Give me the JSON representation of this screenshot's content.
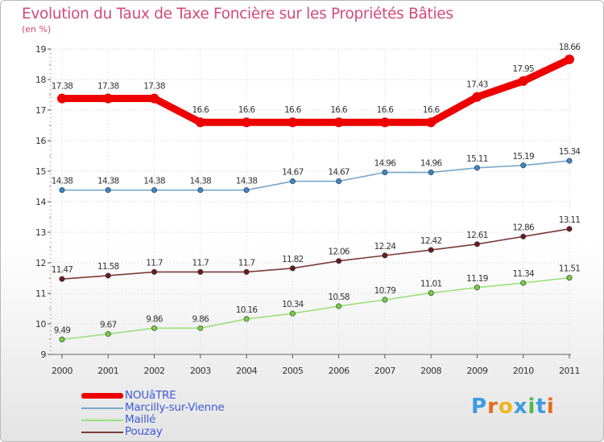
{
  "title": "Evolution du Taux de Taxe Foncière sur les Propriétés Bâties",
  "subtitle": "(en %)",
  "logo": {
    "text": "Proxiti",
    "letters": [
      "P",
      "r",
      "o",
      "x",
      "i",
      "t",
      "i"
    ],
    "colors": [
      "#3c9be0",
      "#e46b1c",
      "#f0b51c",
      "#3c9be0",
      "#4db848",
      "#3c9be0",
      "#e46b1c"
    ]
  },
  "chart_data": {
    "type": "line",
    "title": "Evolution du Taux de Taxe Foncière sur les Propriétés Bâties",
    "ylabel": "(en %)",
    "categories": [
      "2000",
      "2001",
      "2002",
      "2003",
      "2004",
      "2005",
      "2006",
      "2007",
      "2008",
      "2009",
      "2010",
      "2011"
    ],
    "ylim": [
      9,
      19
    ],
    "yticks": [
      "9",
      "10",
      "11",
      "12",
      "13",
      "14",
      "15",
      "16",
      "17",
      "18",
      "19"
    ],
    "series": [
      {
        "name": "NOUâTRE",
        "color": "#ee0000",
        "thick": true,
        "values": [
          17.38,
          17.38,
          17.38,
          16.6,
          16.6,
          16.6,
          16.6,
          16.6,
          16.6,
          17.43,
          17.95,
          18.66
        ],
        "labels": [
          "17.38",
          "17.38",
          "17.38",
          "16.6",
          "16.6",
          "16.6",
          "16.6",
          "16.6",
          "16.6",
          "17.43",
          "17.95",
          "18.66"
        ]
      },
      {
        "name": "Marcilly-sur-Vienne",
        "color": "#7aa6c8",
        "marker": "#3a86c8",
        "values": [
          14.38,
          14.38,
          14.38,
          14.38,
          14.38,
          14.67,
          14.67,
          14.96,
          14.96,
          15.11,
          15.19,
          15.34
        ],
        "labels": [
          "14.38",
          "14.38",
          "14.38",
          "14.38",
          "14.38",
          "14.67",
          "14.67",
          "14.96",
          "14.96",
          "15.11",
          "15.19",
          "15.34"
        ]
      },
      {
        "name": "Maillé",
        "color": "#9be07a",
        "marker": "#72cf3e",
        "values": [
          9.49,
          9.67,
          9.86,
          9.86,
          10.16,
          10.34,
          10.58,
          10.79,
          11.01,
          11.19,
          11.34,
          11.51
        ],
        "labels": [
          "9.49",
          "9.67",
          "9.86",
          "9.86",
          "10.16",
          "10.34",
          "10.58",
          "10.79",
          "11.01",
          "11.19",
          "11.34",
          "11.51"
        ]
      },
      {
        "name": "Pouzay",
        "color": "#7a3a3a",
        "marker": "#6a1c1c",
        "values": [
          11.47,
          11.58,
          11.7,
          11.7,
          11.7,
          11.82,
          12.06,
          12.24,
          12.42,
          12.61,
          12.86,
          13.11
        ],
        "labels": [
          "11.47",
          "11.58",
          "11.7",
          "11.7",
          "11.7",
          "11.82",
          "12.06",
          "12.24",
          "12.42",
          "12.61",
          "12.86",
          "13.11"
        ]
      }
    ],
    "legend": [
      "NOUâTRE",
      "Marcilly-sur-Vienne",
      "Maillé",
      "Pouzay"
    ],
    "legend_position": "bottom-left",
    "grid": true
  }
}
